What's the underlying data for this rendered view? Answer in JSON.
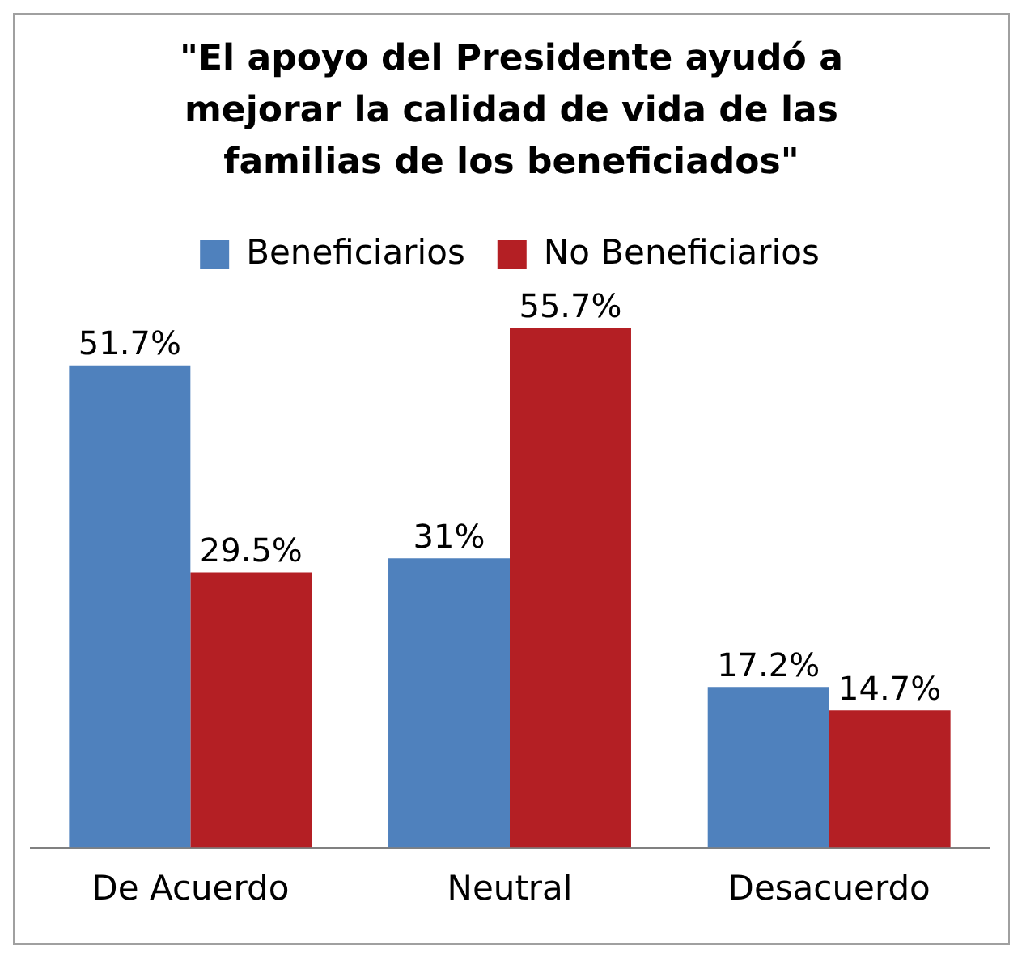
{
  "chart_data": {
    "type": "bar",
    "title": "\"El apoyo del Presidente ayudó a mejorar la calidad de vida de las familias de los beneficiados\"",
    "categories": [
      "De Acuerdo",
      "Neutral",
      "Desacuerdo"
    ],
    "series": [
      {
        "name": "Beneficiarios",
        "color": "#4f81bd",
        "values": [
          51.7,
          31,
          17.2
        ],
        "value_labels": [
          "51.7%",
          "31%",
          "17.2%"
        ]
      },
      {
        "name": "No Beneficiarios",
        "color": "#b41f24",
        "values": [
          29.5,
          55.7,
          14.7
        ],
        "value_labels": [
          "29.5%",
          "55.7%",
          "14.7%"
        ]
      }
    ],
    "legend": "top",
    "grid": false,
    "tick_labels": "x"
  }
}
